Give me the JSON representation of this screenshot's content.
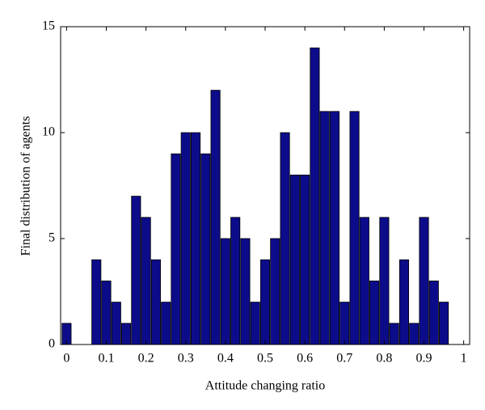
{
  "chart_data": {
    "type": "bar",
    "x": [
      0,
      0.025,
      0.05,
      0.075,
      0.1,
      0.125,
      0.15,
      0.175,
      0.2,
      0.225,
      0.25,
      0.275,
      0.3,
      0.325,
      0.35,
      0.375,
      0.4,
      0.425,
      0.45,
      0.475,
      0.5,
      0.525,
      0.55,
      0.575,
      0.6,
      0.625,
      0.65,
      0.675,
      0.7,
      0.725,
      0.75,
      0.775,
      0.8,
      0.825,
      0.85,
      0.875,
      0.9,
      0.925,
      0.95
    ],
    "values": [
      1,
      0,
      0,
      4,
      3,
      2,
      1,
      7,
      6,
      4,
      2,
      9,
      10,
      10,
      9,
      12,
      5,
      6,
      5,
      2,
      4,
      5,
      10,
      8,
      8,
      14,
      11,
      11,
      2,
      11,
      6,
      3,
      6,
      1,
      4,
      1,
      6,
      3,
      2
    ],
    "color": "#0c0c8a",
    "xlabel": "Attitude changing ratio",
    "ylabel": "Final distribution of agents",
    "xlim": [
      -0.015,
      1.015
    ],
    "xticks": [
      0,
      0.1,
      0.2,
      0.3,
      0.4,
      0.5,
      0.6,
      0.7,
      0.8,
      0.9,
      1
    ],
    "ylim": [
      0,
      15
    ],
    "yticks": [
      0,
      5,
      10,
      15
    ],
    "grid": false
  }
}
